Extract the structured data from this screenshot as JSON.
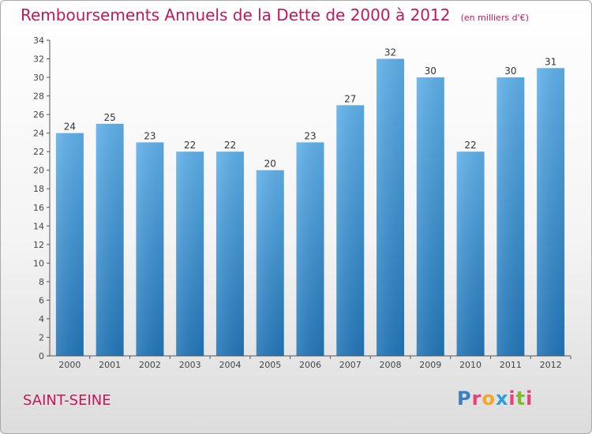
{
  "header": {
    "title": "Remboursements Annuels de la Dette de 2000 à 2012",
    "subtitle": "(en milliers d'€)"
  },
  "footer": {
    "commune": "SAINT-SEINE",
    "logo_text": "Proxiti",
    "logo_letter_colors": [
      "#3a7fc0",
      "#e8407a",
      "#f5a623",
      "#2a9fd8",
      "#e8407a",
      "#7dbb2c",
      "#e8407a"
    ]
  },
  "colors": {
    "title": "#c0185d",
    "bar_top": "#5fb0ea",
    "bar_bottom": "#2276b8",
    "axis_text": "#444444"
  },
  "chart_data": {
    "type": "bar",
    "title": "Remboursements Annuels de la Dette de 2000 à 2012",
    "subtitle": "(en milliers d'€)",
    "categories": [
      "2000",
      "2001",
      "2002",
      "2003",
      "2004",
      "2005",
      "2006",
      "2007",
      "2008",
      "2009",
      "2010",
      "2011",
      "2012"
    ],
    "values": [
      24,
      25,
      23,
      22,
      22,
      20,
      23,
      27,
      32,
      30,
      22,
      30,
      31
    ],
    "ylim": [
      0,
      34
    ],
    "yticks": [
      0,
      2,
      4,
      6,
      8,
      10,
      12,
      14,
      16,
      18,
      20,
      22,
      24,
      26,
      28,
      30,
      32,
      34
    ],
    "grid": false,
    "legend": "none"
  }
}
